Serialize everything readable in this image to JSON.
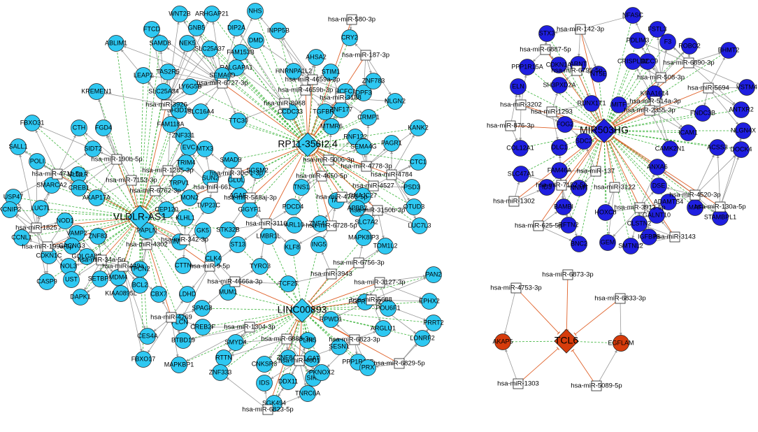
{
  "hubs": [
    "RP11-356I2.4",
    "VLDLR-AS1",
    "LINC00893",
    "MIR503HG",
    "TCL6"
  ],
  "mirnas": [
    "hsa-miR-580-3p",
    "hsa-miR-187-3p",
    "hsa-miR-4659a-3p",
    "hsa-miR-4659b-3p",
    "hsa-miR-3188",
    "hsa-miR-6727-3p",
    "hsa-miR-8068",
    "hsa-miR-3926",
    "hsa-miR-190b-5p",
    "hsa-miR-4711-5p",
    "hsa-miR-7153-3p",
    "hsa-miR-1285-3p",
    "hsa-miR-6762-3p",
    "hsa-miR-4778-3p",
    "hsa-miR-4784",
    "hsa-miR-4527",
    "hsa-miR-5006-3p",
    "hsa-miR-30c-1-3p",
    "hsa-miR-661",
    "hsa-miR-548aj-3p",
    "hsa-miR-4650-5p",
    "hsa-miR-4755-5p",
    "hsa-miR-3150b-3p",
    "hsa-miR-6728-5p",
    "hsa-miR-3116",
    "hsa-miR-1825",
    "hsa-miR-199a-5p",
    "hsa-miR-4302",
    "hsa-miR-342-3p",
    "hsa-miR-34a-5p",
    "hsa-miR-449a",
    "hsa-miR-9-5p",
    "hsa-miR-4666a-3p",
    "hsa-miR-3943",
    "hsa-miR-6756-3p",
    "hsa-miR-3127-3p",
    "hsa-miR-5688",
    "hsa-miR-1304-3p",
    "hsa-miR-4269",
    "hsa-miR-6883-3p",
    "hsa-miR-6823-3p",
    "hsa-miR-4801",
    "hsa-miR-6829-5p",
    "hsa-miR-6823-5p",
    "hsa-miR-142-3p",
    "hsa-miR-6887-5p",
    "hsa-miR-6795-5p",
    "hsa-miR-6890-3p",
    "hsa-miR-508-3p",
    "hsa-miR-5694",
    "hsa-miR-514a-3p",
    "hsa-miR-3202",
    "hsa-miR-1293",
    "hsa-miR-2355-3p",
    "hsa-miR-876-3p",
    "hsa-miR-137",
    "hsa-miR-3122",
    "hsa-miR-7152-5p",
    "hsa-miR-4520-3p",
    "hsa-miR-130a-5p",
    "hsa-miR-1302",
    "hsa-miR-3913-5p",
    "hsa-miR-625-5p",
    "hsa-miR-3143",
    "hsa-miR-4753-3p",
    "hsa-miR-6873-3p",
    "hsa-miR-6833-3p",
    "hsa-miR-1303",
    "hsa-miR-5089-5p"
  ],
  "genes": [
    "WNT2B",
    "ARHGAP21",
    "NHS",
    "FTCD",
    "GNB5",
    "DIP2A",
    "DMD",
    "INPP5B",
    "CRY2",
    "ABLIM1",
    "SAMD8",
    "NEK5",
    "SLC25A37",
    "FAM153B",
    "AHSA2",
    "TAS2R5",
    "LEAP2",
    "RALGAPA1",
    "HNRNPA1L2",
    "STIM1",
    "LY6G5B",
    "SEMA6D",
    "SLC25A34",
    "KREMEN1",
    "CCDC33",
    "HCFC1",
    "DPF3",
    "ZNF783",
    "NLGN2",
    "KANK2",
    "CRMP1",
    "TGFBR3",
    "ZNF177",
    "MTMR6",
    "RNF122",
    "SEMA4G",
    "PAGR1",
    "CTC1",
    "TTC30",
    "SH3D19",
    "SLC16A4",
    "FAM118A",
    "ZNF331",
    "EVC",
    "MTX3",
    "TRIM4",
    "SMAD9",
    "GLUL",
    "SGSM2",
    "TRPV1",
    "SUN2",
    "MON2",
    "TVP23C",
    "CEP120",
    "AGAP3",
    "KLHL1",
    "GIGYF1",
    "TNS1",
    "PDCD4",
    "TAZ",
    "DNAJC27",
    "APBB2",
    "SLC7A2",
    "PSD3",
    "OTUD3",
    "LUC7L3",
    "TOM1L2",
    "MAPK8IP3",
    "ZNF431",
    "ING5",
    "KLF8",
    "ARL10",
    "LMBR1L",
    "TYRO3",
    "ST13",
    "STK32B",
    "GK5",
    "INTU",
    "CLK4",
    "CTTN",
    "PAPLN",
    "TPCN2",
    "BCL2",
    "CBX7",
    "LDHD",
    "MUM1",
    "TCF25",
    "SPAG8",
    "FLCN",
    "CREB2F",
    "BTBD19",
    "SMYD4",
    "RTTN",
    "ZNF333",
    "CNKSR3",
    "ZNF841",
    "LCAT",
    "IDS",
    "DDX11",
    "SIK1",
    "TNRC6A",
    "SGK494",
    "MAPKBP1",
    "CES4A",
    "FBXO17",
    "PLIN5",
    "RPWD1",
    "SESN1",
    "PKNOX2",
    "PPP1R12B",
    "PRX",
    "POU6F1",
    "FGFR1OP2",
    "ARGLU1",
    "LONRF2",
    "PRRT2",
    "EPHX2",
    "PAN2",
    "FBXO31",
    "CTH",
    "FGD4",
    "SALL1",
    "POLI",
    "SIDT2",
    "USP47",
    "LUC7L",
    "SMARCA2",
    "VLDLR",
    "CREB1",
    "AKAP17A",
    "KCNIP2",
    "NOD1",
    "VAMP2",
    "CCNL1",
    "ZNF83",
    "CACNG3",
    "CDKN1C",
    "NOL3",
    "GOLGA8B",
    "CASP9",
    "UST",
    "SETBP1",
    "DAPK1",
    "MDM4",
    "KIAA0895L",
    "NFASC",
    "STX3",
    "FSTL3",
    "PDLIM3",
    "F3",
    "ABCC9",
    "ROBO2",
    "BHMT2",
    "PPP1R15A",
    "CDKN1A",
    "ARNT",
    "NT5E",
    "CRISPLD2",
    "ELN",
    "SH3PXD2A",
    "RUNX1T1",
    "MITF",
    "KIAA1614",
    "VSTM4",
    "ANTXR2",
    "FNDC3B",
    "FOG2",
    "SDC2",
    "COL12A1",
    "DLC1",
    "NLGN4X",
    "ICAM1",
    "CAMK2N1",
    "ACSS3",
    "DOCK4",
    "SLC47A1",
    "FAM46A",
    "ID3",
    "NNMT",
    "BAMBI",
    "ANXA6",
    "DSE",
    "ADAMTS4",
    "MAF",
    "STAMBPL1",
    "HOXC8",
    "RFTN2",
    "CLSTN2",
    "GALNT10",
    "IGFBP5",
    "BNC2",
    "GEM",
    "SMTNL2",
    "AKAP5",
    "EGFLAM"
  ]
}
